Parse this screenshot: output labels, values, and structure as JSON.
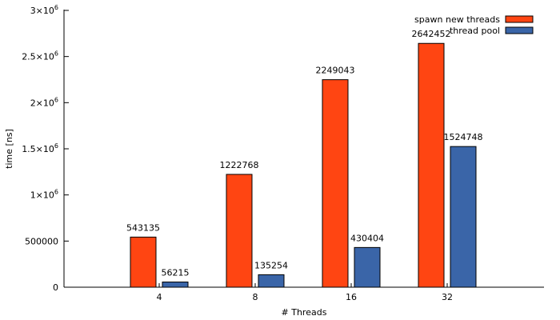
{
  "chart_data": {
    "type": "bar",
    "categories": [
      "4",
      "8",
      "16",
      "32"
    ],
    "series": [
      {
        "name": "spawn new threads",
        "values": [
          543135,
          1222768,
          2249043,
          2642452
        ],
        "color": "#ff4512"
      },
      {
        "name": "thread pool",
        "values": [
          56215,
          135254,
          430404,
          1524748
        ],
        "color": "#3a65a8"
      }
    ],
    "title": "",
    "xlabel": "# Threads",
    "ylabel": "time [ns]",
    "ylim": [
      0,
      3000000
    ],
    "y_ticks": [
      {
        "value": 0,
        "base": "0",
        "exp": ""
      },
      {
        "value": 500000,
        "base": "500000",
        "exp": ""
      },
      {
        "value": 1000000,
        "base": "1×10",
        "exp": "6"
      },
      {
        "value": 1500000,
        "base": "1.5×10",
        "exp": "6"
      },
      {
        "value": 2000000,
        "base": "2×10",
        "exp": "6"
      },
      {
        "value": 2500000,
        "base": "2.5×10",
        "exp": "6"
      },
      {
        "value": 3000000,
        "base": "3×10",
        "exp": "6"
      }
    ],
    "grid": false,
    "legend_position": "top-right",
    "data_labels": true
  }
}
